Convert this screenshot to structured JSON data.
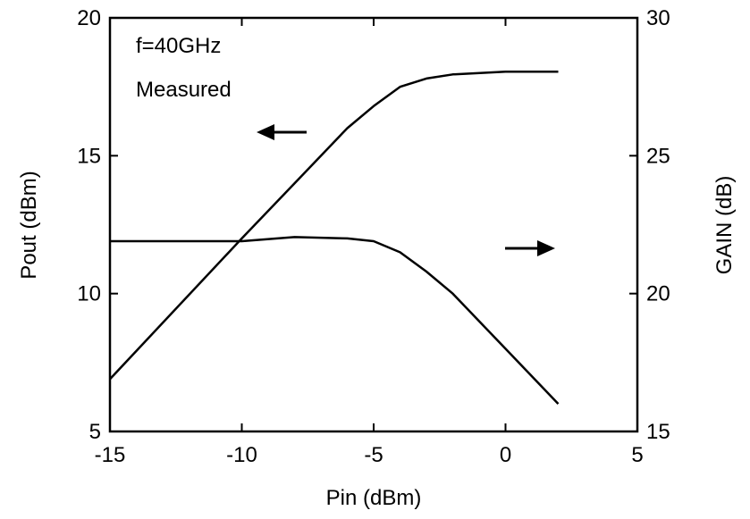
{
  "chart_data": {
    "type": "line",
    "xlabel": "Pin (dBm)",
    "ylabel_left": "Pout (dBm)",
    "ylabel_right": "GAIN (dB)",
    "xlim": [
      -15,
      5
    ],
    "ylim_left": [
      5,
      20
    ],
    "ylim_right": [
      15,
      30
    ],
    "x_ticks": [
      "-15",
      "-10",
      "-5",
      "0",
      "5"
    ],
    "y_left_ticks": [
      "5",
      "10",
      "15",
      "20"
    ],
    "y_right_ticks": [
      "15",
      "20",
      "25",
      "30"
    ],
    "grid": false,
    "annotations": [
      "f=40GHz",
      "Measured"
    ],
    "series": [
      {
        "axis": "left",
        "x": [
          -15,
          -10,
          -8,
          -6,
          -5,
          -4,
          -3,
          -2,
          0,
          2
        ],
        "y": [
          6.9,
          12.0,
          14.0,
          16.0,
          16.8,
          17.5,
          17.8,
          17.95,
          18.05,
          18.05
        ]
      },
      {
        "axis": "right",
        "x": [
          -15,
          -10,
          -8,
          -6,
          -5,
          -4,
          -3,
          -2,
          0,
          2
        ],
        "y": [
          21.9,
          21.9,
          22.05,
          22.0,
          21.9,
          21.5,
          20.8,
          20.0,
          18.0,
          16.0
        ]
      }
    ],
    "arrows": [
      {
        "direction": "left",
        "target_axis": "left"
      },
      {
        "direction": "right",
        "target_axis": "right"
      }
    ]
  }
}
